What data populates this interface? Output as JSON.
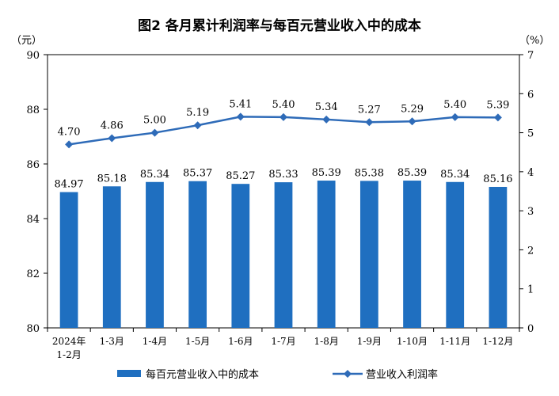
{
  "title": "图2  各月累计利润率与每百元营业收入中的成本",
  "left_unit": "（元）",
  "right_unit": "（%）",
  "colors": {
    "bar": "#1f6fc0",
    "line": "#2e6bb8",
    "axis": "#000000"
  },
  "legend": {
    "bar_label": "每百元营业收入中的成本",
    "line_label": "营业收入利润率"
  },
  "chart_data": {
    "type": "bar",
    "categories": [
      "2024年\n1-2月",
      "1-3月",
      "1-4月",
      "1-5月",
      "1-6月",
      "1-7月",
      "1-8月",
      "1-9月",
      "1-10月",
      "1-11月",
      "1-12月"
    ],
    "series": [
      {
        "name": "每百元营业收入中的成本",
        "type": "bar",
        "axis": "left",
        "values": [
          84.97,
          85.18,
          85.34,
          85.37,
          85.27,
          85.33,
          85.39,
          85.38,
          85.39,
          85.34,
          85.16
        ]
      },
      {
        "name": "营业收入利润率",
        "type": "line",
        "axis": "right",
        "values": [
          4.7,
          4.86,
          5.0,
          5.19,
          5.41,
          5.4,
          5.34,
          5.27,
          5.29,
          5.4,
          5.39
        ]
      }
    ],
    "ylim_left": [
      80,
      90
    ],
    "yticks_left": [
      80,
      82,
      84,
      86,
      88,
      90
    ],
    "ylim_right": [
      0,
      7
    ],
    "yticks_right": [
      0,
      1,
      2,
      3,
      4,
      5,
      6,
      7
    ],
    "bar_labels": [
      "84.97",
      "85.18",
      "85.34",
      "85.37",
      "85.27",
      "85.33",
      "85.39",
      "85.38",
      "85.39",
      "85.34",
      "85.16"
    ],
    "line_labels": [
      "4.70",
      "4.86",
      "5.00",
      "5.19",
      "5.41",
      "5.40",
      "5.34",
      "5.27",
      "5.29",
      "5.40",
      "5.39"
    ],
    "legend_position": "bottom"
  }
}
